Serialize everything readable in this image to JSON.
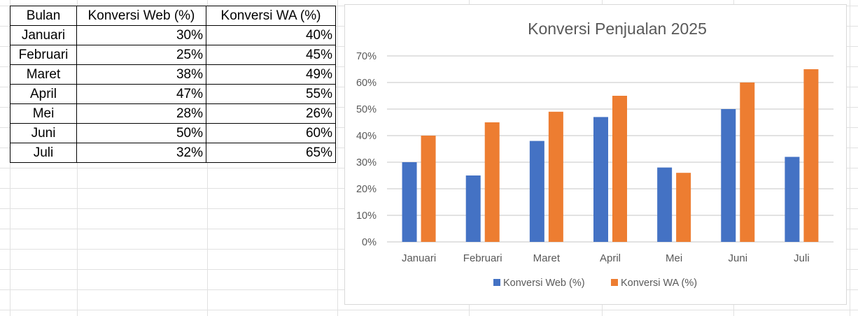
{
  "table": {
    "headers": [
      "Bulan",
      "Konversi Web (%)",
      "Konversi WA (%)"
    ],
    "rows": [
      [
        "Januari",
        "30%",
        "40%"
      ],
      [
        "Februari",
        "25%",
        "45%"
      ],
      [
        "Maret",
        "38%",
        "49%"
      ],
      [
        "April",
        "47%",
        "55%"
      ],
      [
        "Mei",
        "28%",
        "26%"
      ],
      [
        "Juni",
        "50%",
        "60%"
      ],
      [
        "Juli",
        "32%",
        "65%"
      ]
    ]
  },
  "colors": {
    "web": "#4472c4",
    "wa": "#ed7d31",
    "gridline": "#d9d9d9",
    "axis_text": "#595959"
  },
  "chart_data": {
    "type": "bar",
    "title": "Konversi Penjualan 2025",
    "categories": [
      "Januari",
      "Februari",
      "Maret",
      "April",
      "Mei",
      "Juni",
      "Juli"
    ],
    "series": [
      {
        "name": "Konversi Web (%)",
        "values": [
          30,
          25,
          38,
          47,
          28,
          50,
          32
        ]
      },
      {
        "name": "Konversi WA (%)",
        "values": [
          40,
          45,
          49,
          55,
          26,
          60,
          65
        ]
      }
    ],
    "y_ticks": [
      "0%",
      "10%",
      "20%",
      "30%",
      "40%",
      "50%",
      "60%",
      "70%"
    ],
    "ylim": [
      0,
      70
    ],
    "grid": true,
    "legend": "bottom"
  }
}
